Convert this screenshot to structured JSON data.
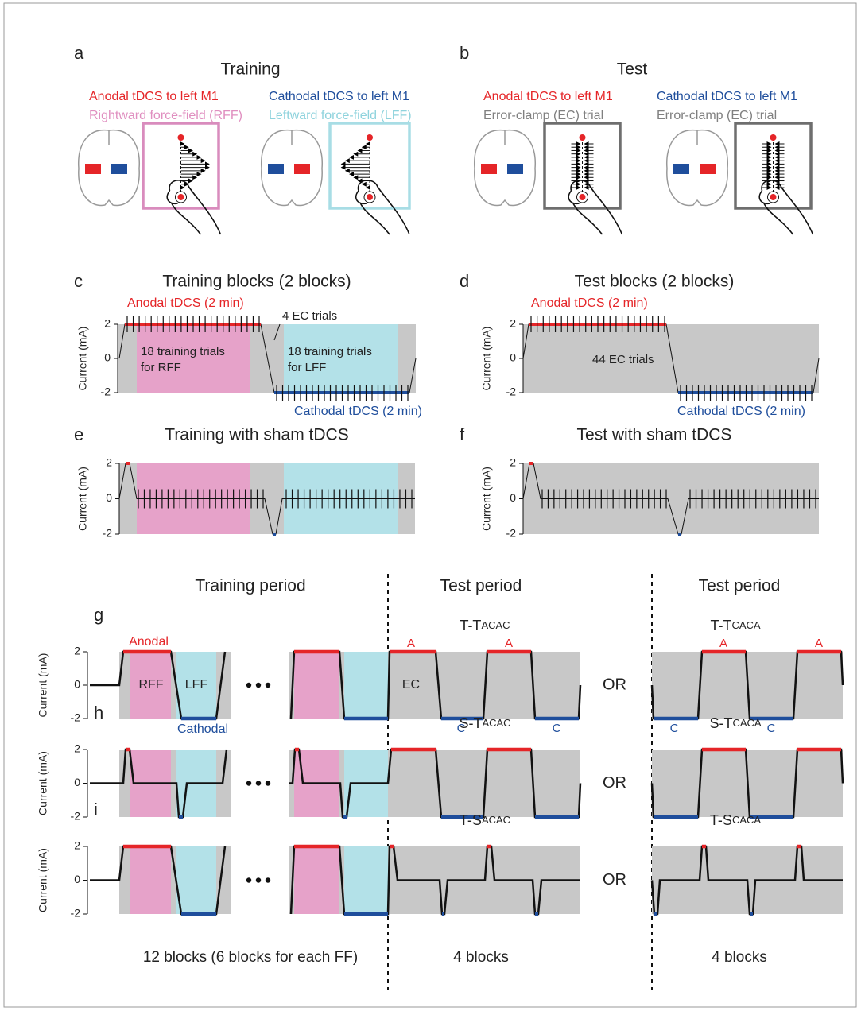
{
  "panels": {
    "a": {
      "label": "a",
      "title": "Training",
      "conditions": [
        {
          "stim": "Anodal tDCS to left M1",
          "trial": "Rightward force-field (RFF)"
        },
        {
          "stim": "Cathodal tDCS to left M1",
          "trial": "Leftward force-field (LFF)"
        }
      ]
    },
    "b": {
      "label": "b",
      "title": "Test",
      "conditions": [
        {
          "stim": "Anodal tDCS to left M1",
          "trial": "Error-clamp (EC) trial"
        },
        {
          "stim": "Cathodal tDCS to left M1",
          "trial": "Error-clamp (EC) trial"
        }
      ]
    },
    "c": {
      "label": "c",
      "title": "Training blocks (2 blocks)",
      "ylabel": "Current (mA)",
      "yticks": [
        2,
        0,
        -2
      ],
      "anodal": "Anodal tDCS (2 min)",
      "cathodal": "Cathodal tDCS (2 min)",
      "ec": "4 EC trials",
      "rff": [
        "18 training trials",
        "for RFF"
      ],
      "lff": [
        "18 training trials",
        "for LFF"
      ]
    },
    "d": {
      "label": "d",
      "title": "Test blocks (2 blocks)",
      "ylabel": "Current (mA)",
      "yticks": [
        2,
        0,
        -2
      ],
      "anodal": "Anodal tDCS (2 min)",
      "cathodal": "Cathodal tDCS (2 min)",
      "ec": "44 EC trials"
    },
    "e": {
      "label": "e",
      "title": "Training with sham tDCS",
      "ylabel": "Current (mA)",
      "yticks": [
        2,
        0,
        -2
      ]
    },
    "f": {
      "label": "f",
      "title": "Test with sham tDCS",
      "ylabel": "Current (mA)",
      "yticks": [
        2,
        0,
        -2
      ]
    }
  },
  "schedule": {
    "headers": [
      "Training period",
      "Test period",
      "Test period"
    ],
    "rows": [
      {
        "label": "g",
        "ylabel": "Current (mA)",
        "yticks": [
          2,
          0,
          -2
        ],
        "tests": [
          {
            "name": "T-T",
            "sub": "ACAC"
          },
          {
            "name": "T-T",
            "sub": "CACA"
          }
        ],
        "or": "OR"
      },
      {
        "label": "h",
        "ylabel": "Current (mA)",
        "yticks": [
          2,
          0,
          -2
        ],
        "tests": [
          {
            "name": "S-T",
            "sub": "ACAC"
          },
          {
            "name": "S-T",
            "sub": "CACA"
          }
        ],
        "or": "OR"
      },
      {
        "label": "i",
        "ylabel": "Current (mA)",
        "yticks": [
          2,
          0,
          -2
        ],
        "tests": [
          {
            "name": "T-S",
            "sub": "ACAC"
          },
          {
            "name": "T-S",
            "sub": "CACA"
          }
        ],
        "or": "OR"
      }
    ],
    "annotations": {
      "anodal": "Anodal",
      "cathodal": "Cathodal",
      "rff": "RFF",
      "lff": "LFF",
      "ec": "EC",
      "a": "A",
      "c": "C"
    },
    "footers": [
      "12 blocks (6 blocks for each FF)",
      "4 blocks",
      "4 blocks"
    ]
  }
}
